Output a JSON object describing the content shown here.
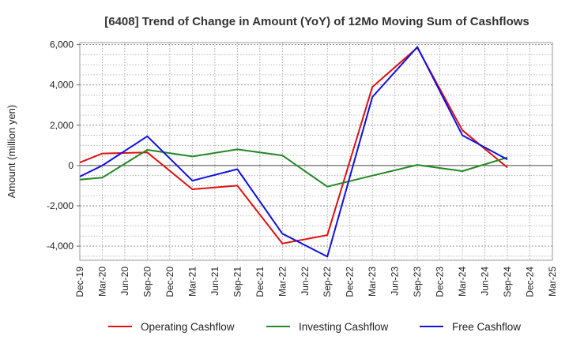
{
  "chart_data": {
    "type": "line",
    "title": "[6408]  Trend of Change in Amount (YoY) of 12Mo Moving Sum of Cashflows",
    "xlabel": "",
    "ylabel": "Amount (million yen)",
    "ylim": [
      -4700,
      6100
    ],
    "yticks": [
      -4000,
      -2000,
      0,
      2000,
      4000,
      6000
    ],
    "ytick_labels": [
      "-4,000",
      "-2,000",
      "0",
      "2,000",
      "4,000",
      "6,000"
    ],
    "grid": true,
    "legend_position": "bottom",
    "categories": [
      "Dec-19",
      "Mar-20",
      "Jun-20",
      "Sep-20",
      "Dec-20",
      "Mar-21",
      "Jun-21",
      "Sep-21",
      "Dec-21",
      "Mar-22",
      "Jun-22",
      "Sep-22",
      "Dec-22",
      "Mar-23",
      "Jun-23",
      "Sep-23",
      "Dec-23",
      "Mar-24",
      "Jun-24",
      "Sep-24",
      "Dec-24",
      "Mar-25"
    ],
    "series": [
      {
        "name": "Operating Cashflow",
        "color": "#dd1111",
        "points": [
          [
            0,
            150
          ],
          [
            1,
            600
          ],
          [
            3,
            650
          ],
          [
            5,
            -1180
          ],
          [
            7,
            -1000
          ],
          [
            9,
            -3870
          ],
          [
            11,
            -3450
          ],
          [
            13,
            3900
          ],
          [
            15,
            5850
          ],
          [
            17,
            1750
          ],
          [
            19,
            -100
          ]
        ]
      },
      {
        "name": "Investing Cashflow",
        "color": "#228822",
        "points": [
          [
            0,
            -700
          ],
          [
            1,
            -600
          ],
          [
            3,
            780
          ],
          [
            5,
            450
          ],
          [
            7,
            800
          ],
          [
            9,
            500
          ],
          [
            11,
            -1050
          ],
          [
            13,
            -500
          ],
          [
            15,
            30
          ],
          [
            17,
            -280
          ],
          [
            19,
            400
          ]
        ]
      },
      {
        "name": "Free Cashflow",
        "color": "#1111dd",
        "points": [
          [
            0,
            -550
          ],
          [
            1,
            0
          ],
          [
            3,
            1450
          ],
          [
            5,
            -750
          ],
          [
            7,
            -180
          ],
          [
            9,
            -3380
          ],
          [
            11,
            -4520
          ],
          [
            13,
            3400
          ],
          [
            15,
            5880
          ],
          [
            17,
            1500
          ],
          [
            19,
            300
          ]
        ]
      }
    ]
  }
}
